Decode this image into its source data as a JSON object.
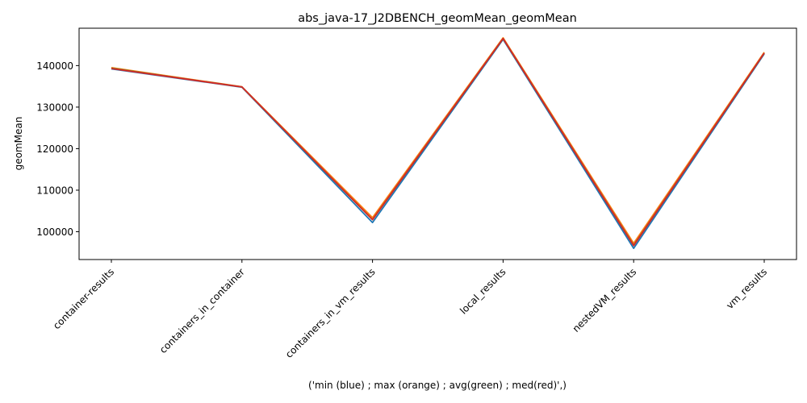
{
  "chart_data": {
    "type": "line",
    "title": "abs_java-17_J2DBENCH_geomMean_geomMean",
    "xlabel": "('min (blue) ; max (orange) ; avg(green) ; med(red)',)",
    "ylabel": "geomMean",
    "categories": [
      "container-results",
      "containers_in_container",
      "containers_in_vm_results",
      "local_results",
      "nestedVM_results",
      "vm_results"
    ],
    "ylim": [
      93300,
      149000
    ],
    "yticks": [
      100000,
      110000,
      120000,
      130000,
      140000
    ],
    "grid": false,
    "series": [
      {
        "color": "#1f77b4",
        "values": [
          139200,
          134800,
          102200,
          146300,
          96000,
          142800
        ]
      },
      {
        "color": "#ff7f0e",
        "values": [
          139500,
          134900,
          103400,
          146700,
          97200,
          143200
        ]
      },
      {
        "color": "#2ca02c",
        "values": [
          139350,
          134850,
          102900,
          146500,
          96700,
          143000
        ]
      },
      {
        "color": "#d62728",
        "values": [
          139300,
          134850,
          102900,
          146500,
          96650,
          143000
        ]
      }
    ]
  }
}
